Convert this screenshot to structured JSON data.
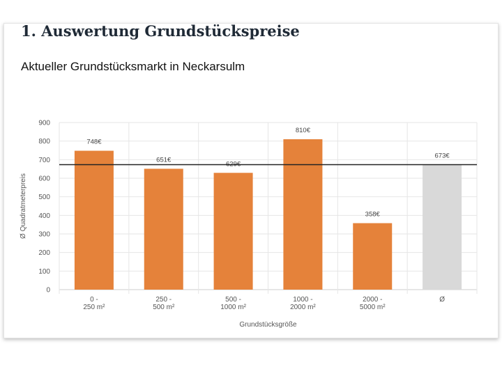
{
  "page": {
    "heading": "1. Auswertung Grundstückspreise"
  },
  "chart_data": {
    "type": "bar",
    "title": "Aktueller Grundstücksmarkt in Neckarsulm",
    "xlabel": "Grundstücksgröße",
    "ylabel": "Ø Quadratmeterpreis",
    "categories": [
      [
        "0 -",
        "250 m²"
      ],
      [
        "250 -",
        "500 m²"
      ],
      [
        "500 -",
        "1000 m²"
      ],
      [
        "1000 -",
        "2000 m²"
      ],
      [
        "2000 -",
        "5000 m²"
      ],
      [
        "Ø"
      ]
    ],
    "values": [
      748,
      651,
      629,
      810,
      358,
      673
    ],
    "data_labels": [
      "748€",
      "651€",
      "629€",
      "810€",
      "358€",
      "673€"
    ],
    "reference_line": 673,
    "ylim": [
      0,
      900
    ],
    "yticks": [
      0,
      100,
      200,
      300,
      400,
      500,
      600,
      700,
      800,
      900
    ],
    "grid": true,
    "colors": {
      "bar": "#e5823a",
      "average_bar": "#d9d9d9",
      "reference_line": "#222222",
      "grid": "#e6e6e6"
    }
  }
}
